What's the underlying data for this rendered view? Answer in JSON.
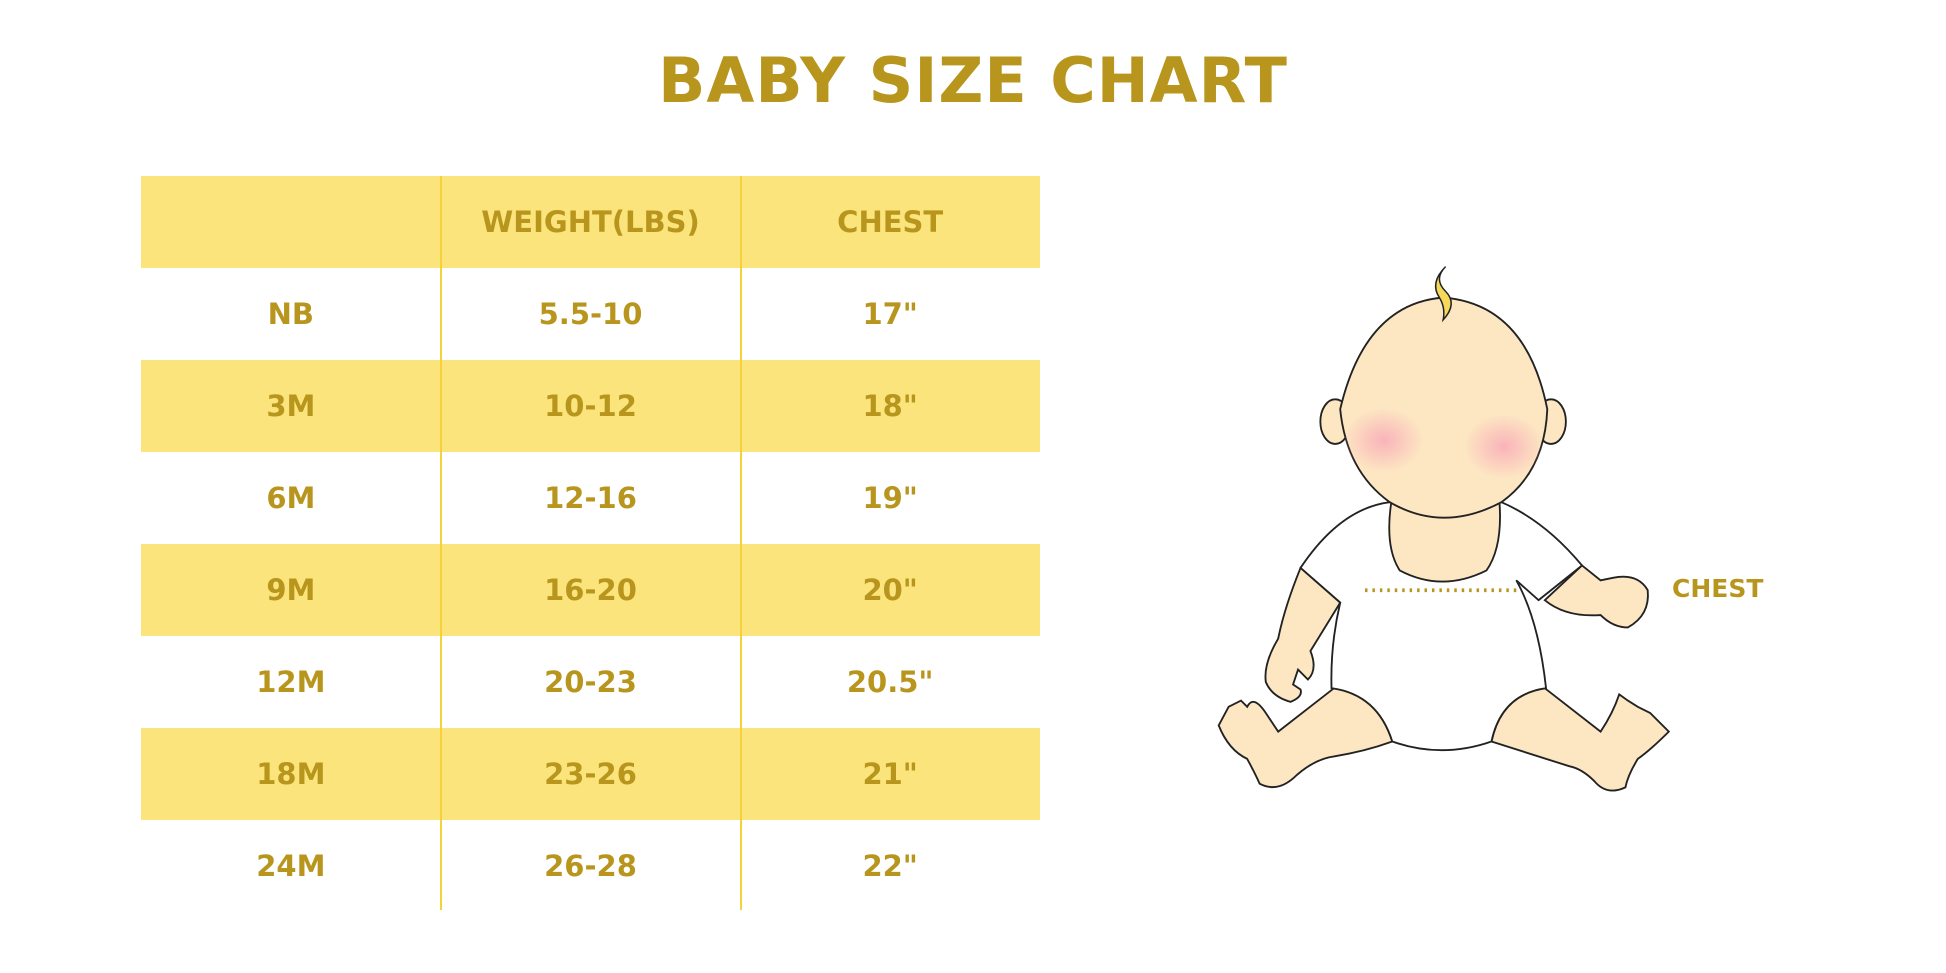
{
  "title": "BABY SIZE CHART",
  "colors": {
    "accent": "#B8961E",
    "band": "#FBE47C",
    "divider": "#F5D13A",
    "skin": "#FDE6C2",
    "cheek": "#F9B3BA"
  },
  "table": {
    "headers": [
      "",
      "WEIGHT(LBS)",
      "CHEST"
    ],
    "rows": [
      [
        "NB",
        "5.5-10",
        "17\""
      ],
      [
        "3M",
        "10-12",
        "18\""
      ],
      [
        "6M",
        "12-16",
        "19\""
      ],
      [
        "9M",
        "16-20",
        "20\""
      ],
      [
        "12M",
        "20-23",
        "20.5\""
      ],
      [
        "18M",
        "23-26",
        "21\""
      ],
      [
        "24M",
        "26-28",
        "22\""
      ]
    ]
  },
  "illustration": {
    "chest_label": "CHEST"
  }
}
